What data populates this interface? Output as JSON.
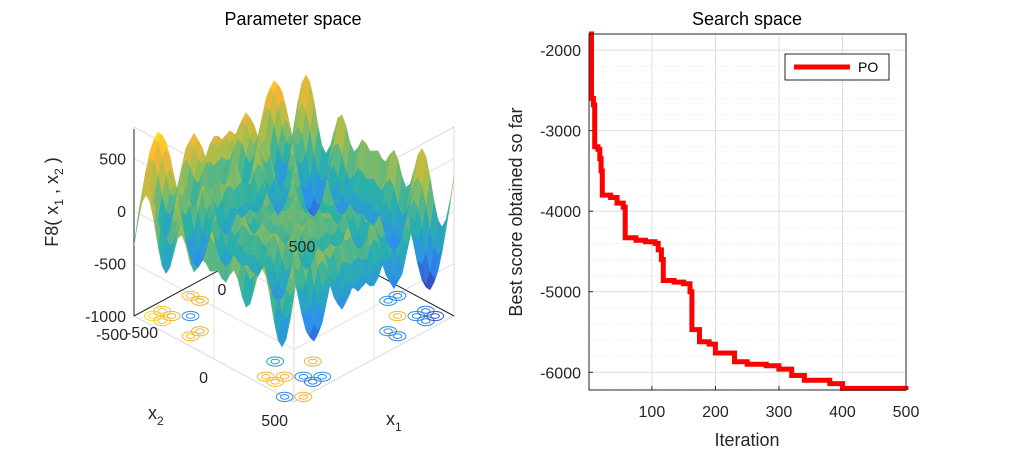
{
  "chart_data": [
    {
      "type": "surface",
      "title": "Parameter space",
      "xlabel": "x",
      "xlabel_sub": "1",
      "ylabel": "x",
      "ylabel_sub": "2",
      "zlabel": {
        "pre": "F8( x",
        "s1": "1",
        "mid": " , x",
        "s2": "2",
        "post": " )"
      },
      "xlim": [
        -500,
        500
      ],
      "ylim": [
        -500,
        500
      ],
      "zlim": [
        -1000,
        800
      ],
      "x_ticks": [
        "-500",
        "0",
        "500"
      ],
      "y_ticks": [
        "500",
        "0",
        "-500"
      ],
      "z_ticks": [
        "500",
        "0",
        "-500",
        "-1000"
      ],
      "colormap": [
        "#3e26a8",
        "#2d8ef0",
        "#2ab1a7",
        "#a6be4a",
        "#fbb535",
        "#f9fb0e"
      ],
      "contour_projection": true,
      "grid": true
    },
    {
      "type": "line",
      "title": "Search space",
      "xlabel": "Iteration",
      "ylabel": "Best score obtained so far",
      "xlim": [
        1,
        500
      ],
      "ylim": [
        -6220,
        -1800
      ],
      "x_ticks": [
        100,
        200,
        300,
        400,
        500
      ],
      "y_ticks": [
        -2000,
        -3000,
        -4000,
        -5000,
        -6000
      ],
      "grid": true,
      "legend_position": "top-right",
      "series": [
        {
          "name": "PO",
          "color": "#ff0000",
          "points": [
            [
              1,
              -1800
            ],
            [
              3,
              -1800
            ],
            [
              5,
              -2600
            ],
            [
              8,
              -2680
            ],
            [
              10,
              -3200
            ],
            [
              15,
              -3230
            ],
            [
              18,
              -3350
            ],
            [
              20,
              -3500
            ],
            [
              22,
              -3800
            ],
            [
              35,
              -3830
            ],
            [
              45,
              -3900
            ],
            [
              55,
              -3950
            ],
            [
              58,
              -4330
            ],
            [
              75,
              -4360
            ],
            [
              90,
              -4380
            ],
            [
              105,
              -4400
            ],
            [
              110,
              -4480
            ],
            [
              115,
              -4600
            ],
            [
              118,
              -4860
            ],
            [
              135,
              -4880
            ],
            [
              150,
              -4900
            ],
            [
              160,
              -5000
            ],
            [
              163,
              -5470
            ],
            [
              172,
              -5470
            ],
            [
              175,
              -5620
            ],
            [
              190,
              -5650
            ],
            [
              200,
              -5760
            ],
            [
              230,
              -5870
            ],
            [
              250,
              -5900
            ],
            [
              280,
              -5920
            ],
            [
              300,
              -5960
            ],
            [
              320,
              -6040
            ],
            [
              340,
              -6100
            ],
            [
              380,
              -6140
            ],
            [
              400,
              -6200
            ],
            [
              500,
              -6220
            ]
          ]
        }
      ]
    }
  ]
}
